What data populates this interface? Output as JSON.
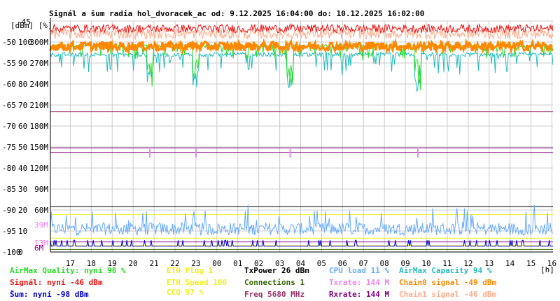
{
  "chart_data": {
    "type": "line",
    "title": "Signál a šum radia hol_dvoracek_ac od: 9.12.2025 16:04:00 do: 10.12.2025 16:02:00",
    "unit_header": "[dBm] [%]",
    "x_unit": "[h]",
    "x_ticks": [
      "17",
      "18",
      "19",
      "20",
      "21",
      "22",
      "23",
      "00",
      "01",
      "02",
      "03",
      "04",
      "05",
      "06",
      "07",
      "08",
      "09",
      "10",
      "11",
      "12",
      "13",
      "14",
      "15",
      "16"
    ],
    "xlim": [
      16.05,
      40.05
    ],
    "y_axes": {
      "dbm": {
        "range": [
          -100,
          -45
        ],
        "ticks": [
          "-45",
          "-50",
          "-55",
          "-60",
          "-65",
          "-70",
          "-75",
          "-80",
          "-85",
          "-90",
          "-95",
          "-100"
        ]
      },
      "percent": {
        "range": [
          0,
          100
        ],
        "ticks": [
          "100",
          "90",
          "80",
          "70",
          "60",
          "50",
          "40",
          "30",
          "20",
          "10",
          "0"
        ]
      },
      "speed": {
        "range": [
          0,
          330
        ],
        "ticks": [
          "300M",
          "270M",
          "240M",
          "210M",
          "180M",
          "150M",
          "120M",
          "90M",
          "60M"
        ]
      }
    },
    "extra_labels": [
      {
        "text": "39M",
        "color": "#ee82ee"
      },
      {
        "text": "13M",
        "color": "#ee82ee"
      },
      {
        "text": "6M",
        "color": "#800080"
      }
    ],
    "series": [
      {
        "name": "AirMax Quality",
        "color": "#22dd22",
        "axis": "percent",
        "typical": 98,
        "min": 78
      },
      {
        "name": "Signál",
        "color": "#ee1111",
        "axis": "dbm",
        "typical": -47,
        "min": -49
      },
      {
        "name": "Šum",
        "color": "#0000cc",
        "axis": "dbm",
        "typical": -98.5,
        "max": -97
      },
      {
        "name": "ETH Plug",
        "color": "#eeee22",
        "axis": "raw",
        "value": 1
      },
      {
        "name": "ETH Speed",
        "color": "#eeee22",
        "axis": "speed",
        "value": 100
      },
      {
        "name": "CCQ",
        "color": "#eeee22",
        "axis": "percent",
        "value": 97
      },
      {
        "name": "TxPower",
        "color": "#000000",
        "axis": "dbm",
        "value": 26
      },
      {
        "name": "Connections",
        "color": "#336600",
        "axis": "raw",
        "value": 1
      },
      {
        "name": "Freq",
        "color": "#993366",
        "axis": "raw",
        "value": 5680
      },
      {
        "name": "CPU load",
        "color": "#66aaff",
        "axis": "percent",
        "typical": 11,
        "max": 22
      },
      {
        "name": "Txrate",
        "color": "#ee82ee",
        "axis": "speed",
        "value": 144
      },
      {
        "name": "Rxrate",
        "color": "#800080",
        "axis": "speed",
        "value": 144
      },
      {
        "name": "AirMax Capacity",
        "color": "#22bbbb",
        "axis": "percent",
        "typical": 94,
        "min": 75
      },
      {
        "name": "Chain0 signal",
        "color": "#ff8800",
        "axis": "dbm",
        "typical": -51
      },
      {
        "name": "Chain1 signal",
        "color": "#ffaa88",
        "axis": "dbm",
        "typical": -48
      }
    ],
    "events": [
      20.8,
      23.0,
      27.5,
      33.6
    ]
  },
  "legend": [
    {
      "text": "AirMax Quality: nyní 98 %",
      "color": "#22dd22",
      "col": 0,
      "row": 0
    },
    {
      "text": "Signál: nyní -46 dBm",
      "color": "#ee1111",
      "col": 0,
      "row": 1
    },
    {
      "text": "Šum: nyní -98 dBm",
      "color": "#0000cc",
      "col": 0,
      "row": 2
    },
    {
      "text": "ETH Plug 1",
      "color": "#eeee22",
      "col": 1,
      "row": 0
    },
    {
      "text": "ETH Speed 100",
      "color": "#eeee22",
      "col": 1,
      "row": 1
    },
    {
      "text": "CCQ 97 %",
      "color": "#eeee22",
      "col": 1,
      "row": 1.7
    },
    {
      "text": "TxPower 26 dBm",
      "color": "#000000",
      "col": 2,
      "row": 0
    },
    {
      "text": "Connections 1",
      "color": "#336600",
      "col": 2,
      "row": 1
    },
    {
      "text": "Freq 5680 MHz",
      "color": "#993366",
      "col": 2,
      "row": 2
    },
    {
      "text": "CPU load 11 %",
      "color": "#66aaff",
      "col": 3,
      "row": 0
    },
    {
      "text": "Txrate: 144 M",
      "color": "#ee82ee",
      "col": 3,
      "row": 1
    },
    {
      "text": "Rxrate: 144 M",
      "color": "#800080",
      "col": 3,
      "row": 2
    },
    {
      "text": "AirMax Capacity 94 %",
      "color": "#22bbbb",
      "col": 4,
      "row": 0
    },
    {
      "text": "Chain0 signal -49 dBm",
      "color": "#ff8800",
      "col": 4,
      "row": 1
    },
    {
      "text": "Chain1 signal -46 dBm",
      "color": "#ffaa88",
      "col": 4,
      "row": 2
    }
  ]
}
